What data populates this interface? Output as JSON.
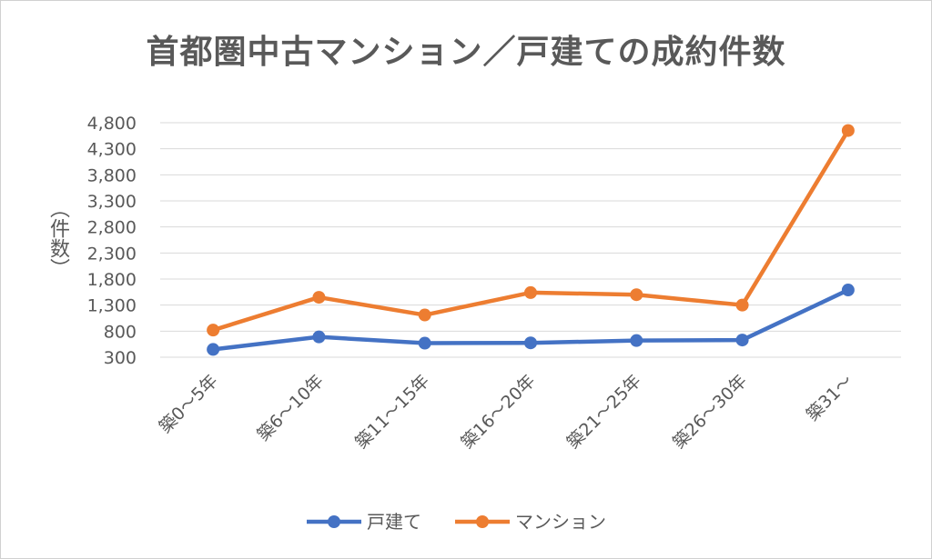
{
  "chart_data": {
    "type": "line",
    "title": "首都圏中古マンション／戸建ての成約件数",
    "ylabel": "（件数）",
    "xlabel": "",
    "categories": [
      "築0～5年",
      "築6～10年",
      "築11～15年",
      "築16～20年",
      "築21～25年",
      "築26～30年",
      "築31～"
    ],
    "yticks": [
      "300",
      "800",
      "1,300",
      "1,800",
      "2,300",
      "2,800",
      "3,300",
      "3,800",
      "4,300",
      "4,800"
    ],
    "ylim": [
      300,
      4800
    ],
    "grid": true,
    "legend_position": "bottom",
    "series": [
      {
        "name": "戸建て",
        "color": "#4472C4",
        "values": [
          450,
          690,
          570,
          575,
          620,
          630,
          1590
        ]
      },
      {
        "name": "マンション",
        "color": "#ED7D31",
        "values": [
          820,
          1450,
          1110,
          1540,
          1500,
          1300,
          4650
        ]
      }
    ]
  }
}
